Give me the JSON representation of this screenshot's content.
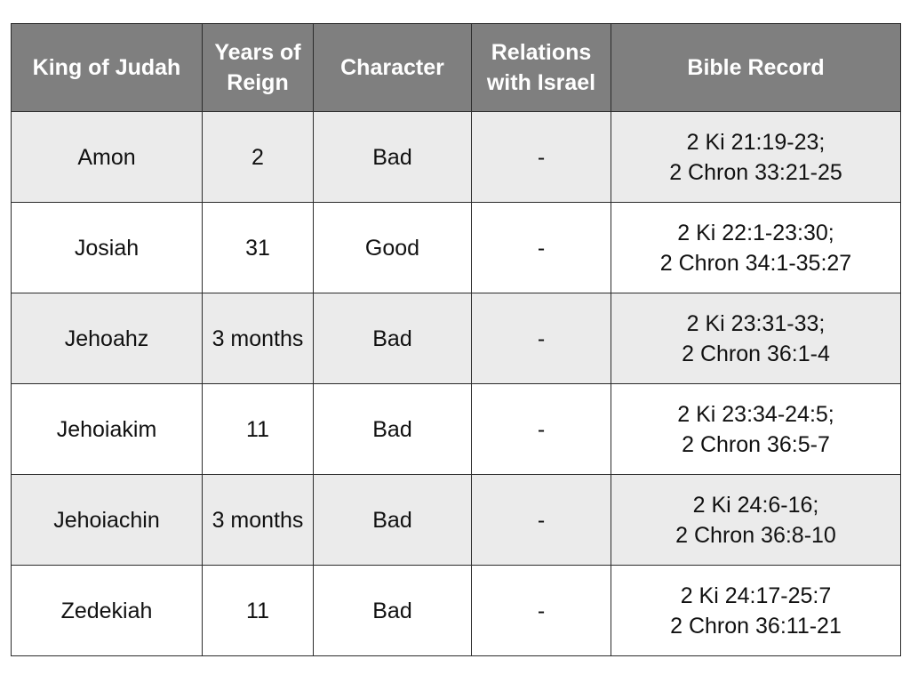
{
  "table": {
    "headers": [
      {
        "lines": [
          "King of Judah"
        ]
      },
      {
        "lines": [
          "Years of",
          "Reign"
        ]
      },
      {
        "lines": [
          "Character"
        ]
      },
      {
        "lines": [
          "Relations",
          "with Israel"
        ]
      },
      {
        "lines": [
          "Bible Record"
        ]
      }
    ],
    "rows": [
      {
        "king": "Amon",
        "years": "2",
        "character": "Bad",
        "relations": "-",
        "record": [
          "2 Ki 21:19-23;",
          "2 Chron 33:21-25"
        ]
      },
      {
        "king": "Josiah",
        "years": "31",
        "character": "Good",
        "relations": "-",
        "record": [
          "2 Ki 22:1-23:30;",
          "2 Chron 34:1-35:27"
        ]
      },
      {
        "king": "Jehoahz",
        "years": "3 months",
        "character": "Bad",
        "relations": "-",
        "record": [
          "2 Ki 23:31-33;",
          "2 Chron 36:1-4"
        ]
      },
      {
        "king": "Jehoiakim",
        "years": "11",
        "character": "Bad",
        "relations": "-",
        "record": [
          "2 Ki 23:34-24:5;",
          "2 Chron 36:5-7"
        ]
      },
      {
        "king": "Jehoiachin",
        "years": "3 months",
        "character": "Bad",
        "relations": "-",
        "record": [
          "2 Ki 24:6-16;",
          "2 Chron 36:8-10"
        ]
      },
      {
        "king": "Zedekiah",
        "years": "11",
        "character": "Bad",
        "relations": "-",
        "record": [
          "2 Ki 24:17-25:7",
          "2 Chron 36:11-21"
        ]
      }
    ]
  },
  "colors": {
    "header_bg": "#7f7f7f",
    "header_text": "#ffffff",
    "row_shaded": "#ebebeb",
    "row_plain": "#ffffff",
    "border": "#2b2b2b"
  }
}
